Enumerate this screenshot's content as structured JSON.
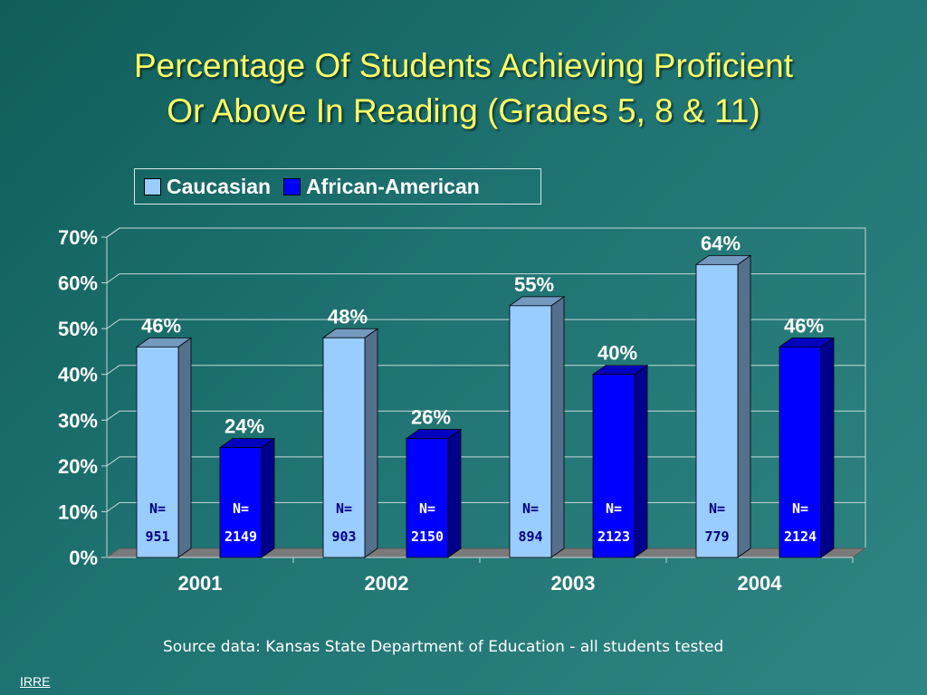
{
  "title_lines": [
    "Percentage Of Students Achieving Proficient",
    "Or Above In Reading (Grades 5, 8 & 11)"
  ],
  "source": "Source data: Kansas State Department of Education - all students tested",
  "footer_label": "IRRE",
  "chart_data": {
    "type": "bar",
    "categories": [
      "2001",
      "2002",
      "2003",
      "2004"
    ],
    "series": [
      {
        "name": "Caucasian",
        "color": "#99ccff",
        "values": [
          46,
          48,
          55,
          64
        ],
        "data_labels": [
          "46%",
          "48%",
          "55%",
          "64%"
        ],
        "n_prefix": "N=",
        "n_values": [
          "951",
          "903",
          "894",
          "779"
        ]
      },
      {
        "name": "African-American",
        "color": "#0000ff",
        "values": [
          24,
          26,
          40,
          46
        ],
        "data_labels": [
          "24%",
          "26%",
          "40%",
          "46%"
        ],
        "n_prefix": "N=",
        "n_values": [
          "2149",
          "2150",
          "2123",
          "2124"
        ]
      }
    ],
    "y_ticks": [
      "0%",
      "10%",
      "20%",
      "30%",
      "40%",
      "50%",
      "60%",
      "70%"
    ],
    "ylim": [
      0,
      70
    ],
    "grid": true,
    "legend_position": "top"
  }
}
